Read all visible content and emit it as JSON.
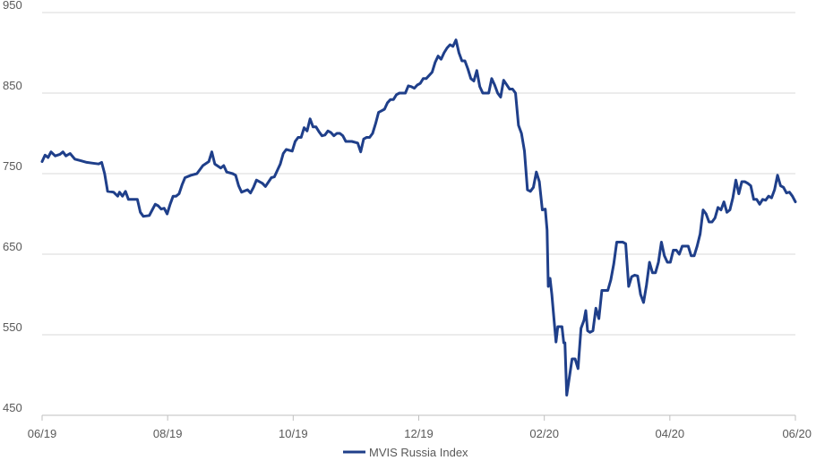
{
  "chart_data": {
    "type": "line",
    "title": "",
    "xlabel": "",
    "ylabel": "",
    "ylim": [
      450,
      950
    ],
    "yticks": [
      450,
      550,
      650,
      750,
      850,
      950
    ],
    "xlim": [
      0,
      12
    ],
    "xticks": [
      {
        "x": 0,
        "label": "06/19"
      },
      {
        "x": 2,
        "label": "08/19"
      },
      {
        "x": 4,
        "label": "10/19"
      },
      {
        "x": 6,
        "label": "12/19"
      },
      {
        "x": 8,
        "label": "02/20"
      },
      {
        "x": 10,
        "label": "04/20"
      },
      {
        "x": 12,
        "label": "06/20"
      }
    ],
    "grid": true,
    "legend_position": "bottom-center",
    "series": [
      {
        "name": "MVIS Russia Index",
        "color": "#1f3f8a",
        "points": [
          [
            0.0,
            765
          ],
          [
            0.05,
            773
          ],
          [
            0.1,
            770
          ],
          [
            0.15,
            777
          ],
          [
            0.22,
            772
          ],
          [
            0.3,
            774
          ],
          [
            0.35,
            777
          ],
          [
            0.4,
            772
          ],
          [
            0.47,
            775
          ],
          [
            0.55,
            768
          ],
          [
            0.65,
            766
          ],
          [
            0.75,
            764
          ],
          [
            0.85,
            763
          ],
          [
            0.95,
            762
          ],
          [
            1.0,
            764
          ],
          [
            1.05,
            750
          ],
          [
            1.1,
            728
          ],
          [
            1.2,
            727
          ],
          [
            1.27,
            722
          ],
          [
            1.3,
            727
          ],
          [
            1.35,
            722
          ],
          [
            1.4,
            728
          ],
          [
            1.45,
            718
          ],
          [
            1.5,
            718
          ],
          [
            1.55,
            718
          ],
          [
            1.6,
            718
          ],
          [
            1.65,
            702
          ],
          [
            1.7,
            697
          ],
          [
            1.8,
            698
          ],
          [
            1.85,
            705
          ],
          [
            1.9,
            712
          ],
          [
            1.95,
            710
          ],
          [
            2.0,
            706
          ],
          [
            2.05,
            707
          ],
          [
            2.1,
            700
          ],
          [
            2.15,
            712
          ],
          [
            2.2,
            722
          ],
          [
            2.25,
            722
          ],
          [
            2.3,
            725
          ],
          [
            2.35,
            736
          ],
          [
            2.4,
            745
          ],
          [
            2.5,
            748
          ],
          [
            2.6,
            750
          ],
          [
            2.7,
            760
          ],
          [
            2.8,
            765
          ],
          [
            2.85,
            777
          ],
          [
            2.9,
            762
          ],
          [
            3.0,
            757
          ],
          [
            3.05,
            760
          ],
          [
            3.1,
            752
          ],
          [
            3.2,
            750
          ],
          [
            3.25,
            748
          ],
          [
            3.3,
            735
          ],
          [
            3.35,
            727
          ],
          [
            3.45,
            730
          ],
          [
            3.5,
            726
          ],
          [
            3.55,
            733
          ],
          [
            3.6,
            742
          ],
          [
            3.7,
            738
          ],
          [
            3.75,
            734
          ],
          [
            3.85,
            745
          ],
          [
            3.9,
            746
          ],
          [
            4.0,
            762
          ],
          [
            4.05,
            775
          ],
          [
            4.1,
            780
          ],
          [
            4.2,
            778
          ],
          [
            4.25,
            790
          ],
          [
            4.3,
            795
          ],
          [
            4.35,
            795
          ],
          [
            4.4,
            807
          ],
          [
            4.45,
            803
          ],
          [
            4.5,
            818
          ],
          [
            4.55,
            808
          ],
          [
            4.6,
            808
          ],
          [
            4.65,
            802
          ],
          [
            4.7,
            797
          ],
          [
            4.75,
            798
          ],
          [
            4.8,
            803
          ],
          [
            4.85,
            801
          ],
          [
            4.9,
            797
          ],
          [
            4.95,
            800
          ],
          [
            5.0,
            800
          ],
          [
            5.05,
            797
          ],
          [
            5.1,
            790
          ],
          [
            5.2,
            790
          ],
          [
            5.3,
            788
          ],
          [
            5.35,
            777
          ],
          [
            5.4,
            793
          ],
          [
            5.45,
            795
          ],
          [
            5.5,
            795
          ],
          [
            5.55,
            800
          ],
          [
            5.6,
            812
          ],
          [
            5.65,
            826
          ],
          [
            5.7,
            828
          ],
          [
            5.75,
            830
          ],
          [
            5.8,
            838
          ],
          [
            5.85,
            842
          ],
          [
            5.9,
            842
          ],
          [
            5.95,
            848
          ],
          [
            6.0,
            850
          ],
          [
            6.1,
            850
          ],
          [
            6.15,
            859
          ],
          [
            6.2,
            858
          ],
          [
            6.25,
            856
          ],
          [
            6.3,
            860
          ],
          [
            6.35,
            862
          ],
          [
            6.4,
            868
          ],
          [
            6.45,
            868
          ],
          [
            6.55,
            876
          ],
          [
            6.6,
            888
          ],
          [
            6.65,
            896
          ],
          [
            6.7,
            892
          ],
          [
            6.75,
            900
          ],
          [
            6.8,
            906
          ],
          [
            6.85,
            910
          ],
          [
            6.9,
            908
          ],
          [
            6.95,
            916
          ],
          [
            7.0,
            900
          ],
          [
            7.05,
            890
          ],
          [
            7.1,
            890
          ],
          [
            7.15,
            880
          ],
          [
            7.2,
            868
          ],
          [
            7.25,
            865
          ],
          [
            7.3,
            878
          ],
          [
            7.35,
            858
          ],
          [
            7.4,
            850
          ],
          [
            7.5,
            850
          ],
          [
            7.55,
            868
          ],
          [
            7.6,
            860
          ],
          [
            7.65,
            850
          ],
          [
            7.7,
            845
          ],
          [
            7.75,
            866
          ],
          [
            7.85,
            855
          ],
          [
            7.9,
            855
          ],
          [
            7.95,
            850
          ],
          [
            8.0,
            810
          ],
          [
            8.05,
            800
          ],
          [
            8.1,
            778
          ],
          [
            8.15,
            730
          ],
          [
            8.2,
            728
          ],
          [
            8.25,
            733
          ],
          [
            8.3,
            752
          ],
          [
            8.35,
            740
          ],
          [
            8.4,
            705
          ],
          [
            8.45,
            706
          ],
          [
            8.48,
            680
          ],
          [
            8.5,
            610
          ],
          [
            8.53,
            620
          ],
          [
            8.56,
            600
          ],
          [
            8.6,
            566
          ],
          [
            8.63,
            541
          ],
          [
            8.66,
            560
          ],
          [
            8.7,
            560
          ],
          [
            8.73,
            560
          ],
          [
            8.76,
            540
          ],
          [
            8.78,
            540
          ],
          [
            8.81,
            475
          ],
          [
            8.85,
            495
          ],
          [
            8.9,
            520
          ],
          [
            8.95,
            520
          ],
          [
            9.0,
            508
          ],
          [
            9.05,
            558
          ],
          [
            9.1,
            568
          ],
          [
            9.13,
            580
          ],
          [
            9.16,
            555
          ],
          [
            9.2,
            553
          ],
          [
            9.25,
            555
          ],
          [
            9.3,
            583
          ],
          [
            9.35,
            570
          ],
          [
            9.4,
            605
          ],
          [
            9.45,
            605
          ],
          [
            9.5,
            605
          ],
          [
            9.55,
            618
          ],
          [
            9.6,
            638
          ],
          [
            9.65,
            665
          ],
          [
            9.7,
            665
          ],
          [
            9.75,
            665
          ],
          [
            9.8,
            663
          ],
          [
            9.85,
            610
          ],
          [
            9.9,
            622
          ],
          [
            9.95,
            624
          ],
          [
            10.0,
            623
          ],
          [
            10.05,
            600
          ],
          [
            10.1,
            590
          ],
          [
            10.15,
            612
          ],
          [
            10.2,
            640
          ],
          [
            10.25,
            627
          ],
          [
            10.3,
            627
          ],
          [
            10.35,
            640
          ],
          [
            10.4,
            665
          ],
          [
            10.45,
            648
          ],
          [
            10.5,
            640
          ],
          [
            10.55,
            640
          ],
          [
            10.6,
            655
          ],
          [
            10.65,
            655
          ],
          [
            10.7,
            650
          ],
          [
            10.75,
            660
          ],
          [
            10.8,
            660
          ],
          [
            10.85,
            660
          ],
          [
            10.9,
            648
          ],
          [
            10.95,
            648
          ],
          [
            11.0,
            660
          ],
          [
            11.05,
            675
          ],
          [
            11.1,
            705
          ],
          [
            11.15,
            700
          ],
          [
            11.2,
            690
          ],
          [
            11.25,
            690
          ],
          [
            11.3,
            695
          ],
          [
            11.35,
            708
          ],
          [
            11.4,
            705
          ],
          [
            11.45,
            715
          ],
          [
            11.5,
            702
          ],
          [
            11.55,
            705
          ],
          [
            11.6,
            720
          ],
          [
            11.65,
            742
          ],
          [
            11.7,
            725
          ],
          [
            11.75,
            740
          ],
          [
            11.8,
            740
          ],
          [
            11.85,
            738
          ],
          [
            11.9,
            735
          ],
          [
            11.95,
            718
          ],
          [
            12.0,
            718
          ],
          [
            12.05,
            712
          ],
          [
            12.1,
            718
          ],
          [
            12.15,
            717
          ],
          [
            12.2,
            722
          ],
          [
            12.25,
            720
          ],
          [
            12.3,
            730
          ],
          [
            12.35,
            748
          ],
          [
            12.4,
            735
          ],
          [
            12.45,
            733
          ],
          [
            12.5,
            726
          ],
          [
            12.55,
            727
          ],
          [
            12.6,
            722
          ],
          [
            12.65,
            715
          ]
        ]
      }
    ]
  }
}
